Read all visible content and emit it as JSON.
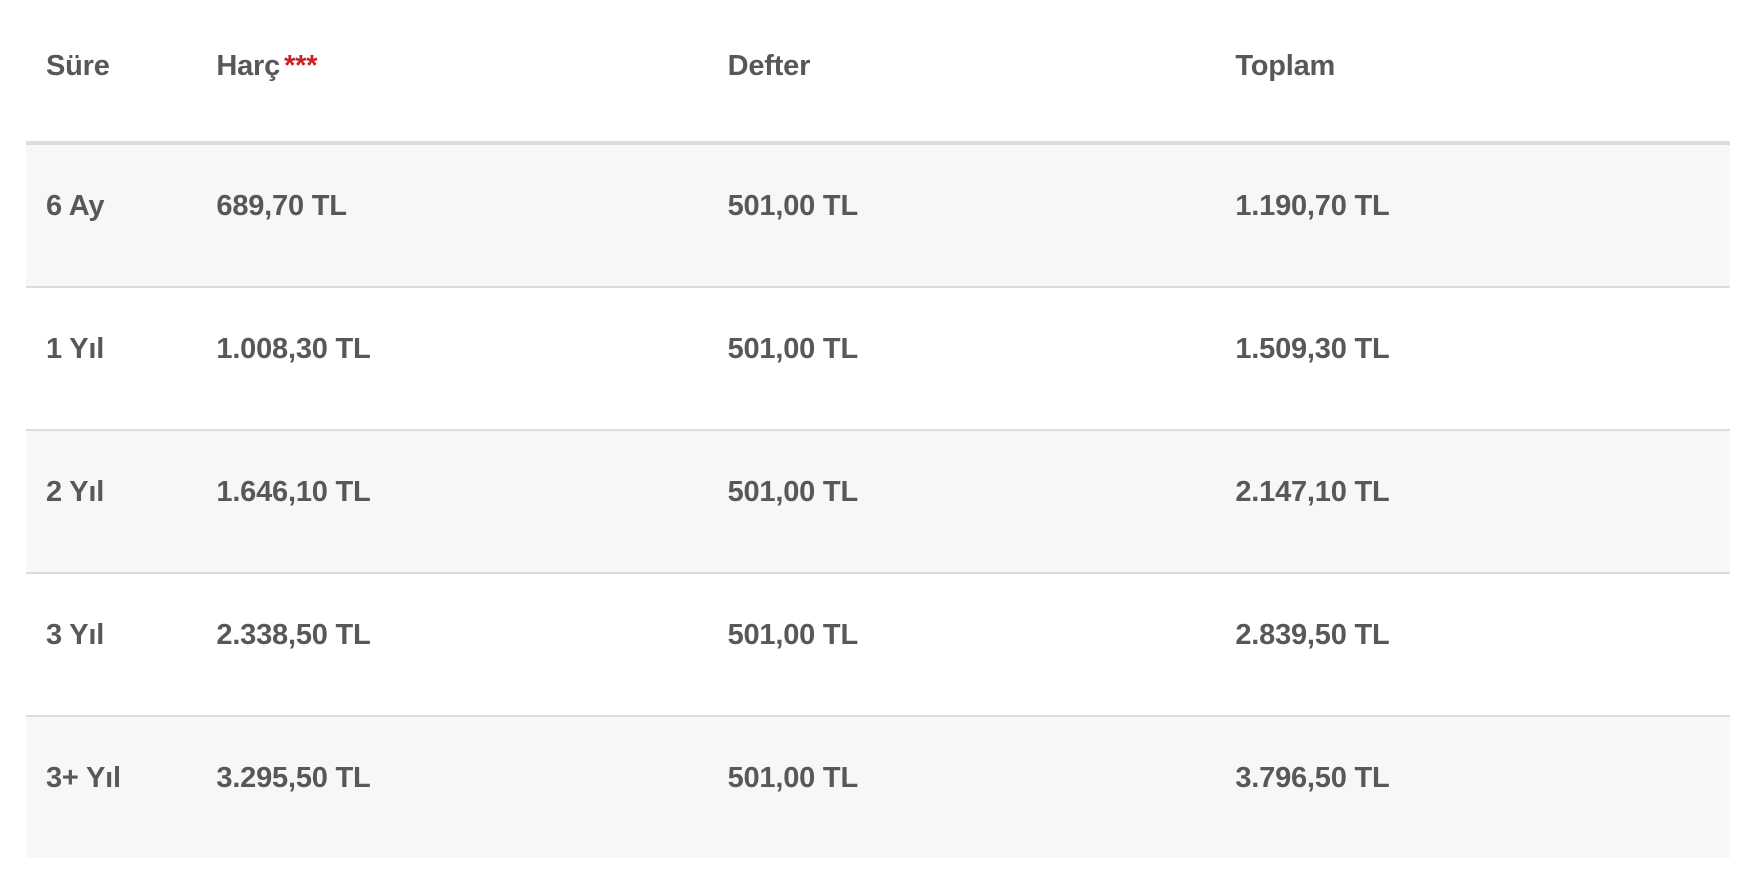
{
  "table": {
    "columns": [
      {
        "key": "sure",
        "label": "Süre"
      },
      {
        "key": "harc",
        "label": "Harç",
        "annotation": "***"
      },
      {
        "key": "defter",
        "label": "Defter"
      },
      {
        "key": "toplam",
        "label": "Toplam"
      }
    ],
    "rows": [
      {
        "sure": "6 Ay",
        "harc": "689,70 TL",
        "defter": "501,00 TL",
        "toplam": "1.190,70 TL"
      },
      {
        "sure": "1 Yıl",
        "harc": "1.008,30 TL",
        "defter": "501,00 TL",
        "toplam": "1.509,30 TL"
      },
      {
        "sure": "2 Yıl",
        "harc": "1.646,10 TL",
        "defter": "501,00 TL",
        "toplam": "2.147,10 TL"
      },
      {
        "sure": "3 Yıl",
        "harc": "2.338,50 TL",
        "defter": "501,00 TL",
        "toplam": "2.839,50 TL"
      },
      {
        "sure": "3+ Yıl",
        "harc": "3.295,50 TL",
        "defter": "501,00 TL",
        "toplam": "3.796,50 TL"
      }
    ]
  },
  "colors": {
    "text_color": "#58585a",
    "accent_red": "#cb2026",
    "row_alt_bg": "#f7f7f7",
    "border_color": "#dcdcdc",
    "page_bg": "#ffffff"
  }
}
